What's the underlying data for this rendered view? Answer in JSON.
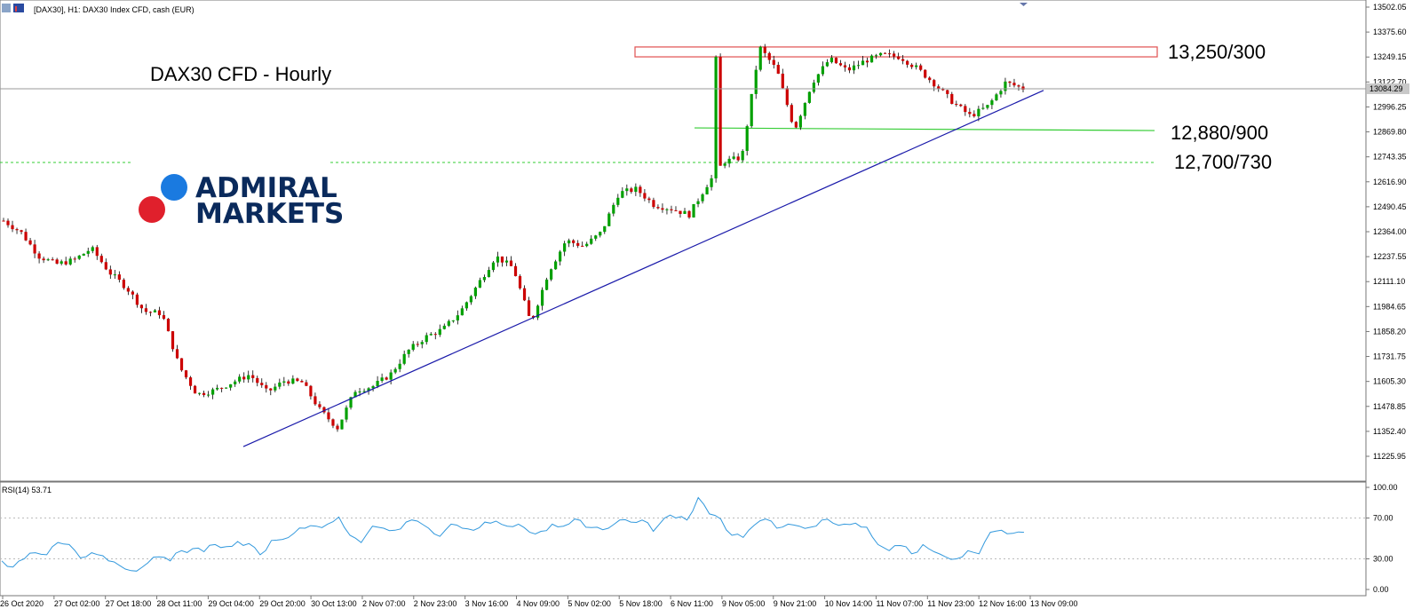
{
  "header": {
    "symbol": "[DAX30], H1:  DAX30 Index CFD, cash (EUR)"
  },
  "title": "DAX30 CFD - Hourly",
  "logo": {
    "line1": "ADMIRAL",
    "line2": "MARKETS"
  },
  "colors": {
    "bull": "#00a000",
    "bear": "#cc0000",
    "wick": "#000000",
    "trendline": "#1a1aaa",
    "support": "#33cc33",
    "resistance": "#e05050",
    "rsi": "#3399dd",
    "logo_blue": "#1a7ae0",
    "logo_red": "#e0202c"
  },
  "chart_data": {
    "type": "candlestick",
    "ylim": [
      11162,
      13520
    ],
    "yticks": [
      13502.05,
      13375.6,
      13249.15,
      13122.7,
      12996.25,
      12869.8,
      12743.35,
      12616.9,
      12490.45,
      12364.0,
      12237.55,
      12111.1,
      11984.65,
      11858.2,
      11731.75,
      11605.3,
      11478.85,
      11352.4,
      11225.95
    ],
    "current_price": "13084.29",
    "xticks": [
      "26 Oct 2020",
      "27 Oct 02:00",
      "27 Oct 18:00",
      "28 Oct 11:00",
      "29 Oct 04:00",
      "29 Oct 20:00",
      "30 Oct 13:00",
      "2 Nov 07:00",
      "2 Nov 23:00",
      "3 Nov 16:00",
      "4 Nov 09:00",
      "5 Nov 02:00",
      "5 Nov 18:00",
      "6 Nov 11:00",
      "9 Nov 05:00",
      "9 Nov 21:00",
      "10 Nov 14:00",
      "11 Nov 07:00",
      "11 Nov 23:00",
      "12 Nov 16:00",
      "13 Nov 09:00"
    ],
    "close_path": [
      12420,
      12360,
      12240,
      12200,
      12220,
      12280,
      12160,
      12080,
      11960,
      11950,
      11680,
      11540,
      11560,
      11600,
      11640,
      11550,
      11610,
      11600,
      11460,
      11370,
      11560,
      11580,
      11640,
      11760,
      11830,
      11870,
      11960,
      12100,
      12240,
      12180,
      11900,
      12160,
      12320,
      12290,
      12360,
      12560,
      12580,
      12500,
      12480,
      12450,
      12600,
      12720,
      12740,
      13300,
      13180,
      12880,
      13120,
      13240,
      13180,
      13230,
      13260,
      13250,
      13190,
      13110,
      13020,
      12950,
      13000,
      13120,
      13090
    ],
    "annotations": {
      "resistance": {
        "label": "13,250/300",
        "low": 13250,
        "high": 13300
      },
      "support1": {
        "label": "12,880/900",
        "value": 12890
      },
      "support2": {
        "label": "12,700/730",
        "value": 12715
      }
    },
    "trendline": {
      "from": {
        "x": "29 Oct 20:00",
        "y": 11320
      },
      "to": {
        "x": "13 Nov 09:00",
        "y": 13080
      }
    },
    "rsi": {
      "label": "RSI(14) 53.71",
      "yticks": [
        "100.00",
        "70.00",
        "30.00",
        "0.00"
      ],
      "levels": [
        70,
        30
      ],
      "values": [
        28,
        22,
        30,
        36,
        34,
        46,
        44,
        31,
        36,
        33,
        27,
        20,
        18,
        26,
        32,
        28,
        38,
        40,
        37,
        44,
        42,
        47,
        45,
        34,
        48,
        49,
        55,
        60,
        62,
        64,
        71,
        53,
        46,
        62,
        60,
        58,
        66,
        67,
        60,
        52,
        64,
        60,
        58,
        66,
        67,
        62,
        64,
        56,
        57,
        64,
        62,
        69,
        61,
        61,
        60,
        68,
        66,
        68,
        57,
        70,
        70,
        68,
        90,
        74,
        69,
        53,
        51,
        63,
        69,
        60,
        64,
        62,
        61,
        68,
        65,
        64,
        65,
        61,
        44,
        38,
        43,
        35,
        44,
        37,
        32,
        30,
        38,
        35,
        56,
        58,
        55,
        56
      ]
    }
  }
}
